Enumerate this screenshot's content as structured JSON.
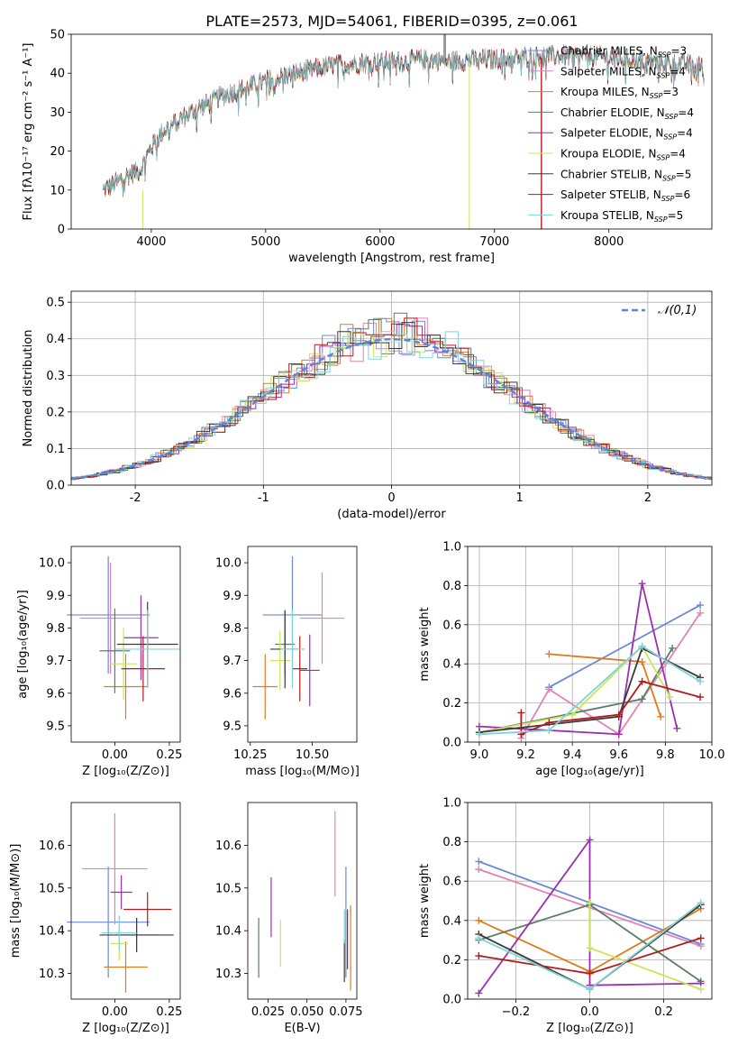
{
  "figure_title": "PLATE=2573, MJD=54061, FIBERID=0395, z=0.061",
  "model_colors": [
    "#6a88d9",
    "#e282b5",
    "#e07b1a",
    "#5e7d66",
    "#9a2fb0",
    "#c9e65a",
    "#3a3a3a",
    "#b31b1b",
    "#7fd3d9"
  ],
  "chart_data": [
    {
      "panel": "spectrum",
      "type": "line",
      "xlabel": "wavelength [Angstrom, rest frame]",
      "ylabel": "Flux [fλ10⁻¹⁷ erg cm⁻² s⁻¹ A⁻¹]",
      "xlim": [
        3300,
        8900
      ],
      "ylim": [
        0,
        50
      ],
      "xticks": [
        4000,
        5000,
        6000,
        7000,
        8000
      ],
      "yticks": [
        0,
        10,
        20,
        30,
        40,
        50
      ],
      "grid": false,
      "legend_position": "right",
      "series": [
        {
          "name": "Chabrier MILES, N",
          "sub": "SSP",
          "suffix": "=3"
        },
        {
          "name": "Salpeter MILES, N",
          "sub": "SSP",
          "suffix": "=4"
        },
        {
          "name": "Kroupa MILES, N",
          "sub": "SSP",
          "suffix": "=3"
        },
        {
          "name": "Chabrier ELODIE, N",
          "sub": "SSP",
          "suffix": "=4"
        },
        {
          "name": "Salpeter ELODIE, N",
          "sub": "SSP",
          "suffix": "=4"
        },
        {
          "name": "Kroupa ELODIE, N",
          "sub": "SSP",
          "suffix": "=4"
        },
        {
          "name": "Chabrier STELIB, N",
          "sub": "SSP",
          "suffix": "=5"
        },
        {
          "name": "Salpeter STELIB, N",
          "sub": "SSP",
          "suffix": "=6"
        },
        {
          "name": "Kroupa STELIB, N",
          "sub": "SSP",
          "suffix": "=5"
        }
      ],
      "continuum": {
        "x": [
          3580,
          3700,
          3800,
          3900,
          4000,
          4100,
          4200,
          4300,
          4400,
          4500,
          4600,
          4800,
          5000,
          5200,
          5400,
          5600,
          5800,
          6000,
          6200,
          6400,
          6600,
          6800,
          7000,
          7200,
          7400,
          7600,
          7800,
          8000,
          8200,
          8400,
          8600,
          8800
        ],
        "y": [
          10,
          12,
          14,
          15,
          21,
          25,
          27,
          29,
          31,
          32,
          34,
          36,
          38,
          39.5,
          41,
          42,
          42.5,
          43,
          43,
          43.5,
          43,
          43.5,
          43.5,
          44,
          44.5,
          44.5,
          44.5,
          44,
          43.5,
          43,
          42.5,
          42
        ]
      }
    },
    {
      "panel": "residuals",
      "type": "area",
      "xlabel": "(data-model)/error",
      "ylabel": "Normed distribution",
      "xlim": [
        -2.5,
        2.5
      ],
      "ylim": [
        0,
        0.53
      ],
      "xticks": [
        -2,
        -1,
        0,
        1,
        2
      ],
      "yticks": [
        0.0,
        0.1,
        0.2,
        0.3,
        0.4,
        0.5
      ],
      "grid": true,
      "legend": "𝒩(0,1)",
      "legend_position": "top-right",
      "gaussian": {
        "mean": 0,
        "sigma": 1
      }
    },
    {
      "panel": "age_vs_Z",
      "type": "scatter",
      "xlabel": "Z [log₁₀(Z/Z⊙)]",
      "ylabel": "age  [log₁₀(age/yr)]",
      "xlim": [
        -0.2,
        0.3
      ],
      "ylim": [
        9.45,
        10.05
      ],
      "xticks": [
        0.0,
        0.25
      ],
      "yticks": [
        9.5,
        9.6,
        9.7,
        9.8,
        9.9,
        10.0
      ],
      "xtick_labels": [
        "0.00",
        "0.25"
      ],
      "ytick_labels": [
        "9.5",
        "9.6",
        "9.7",
        "9.8",
        "9.9",
        "10.0"
      ],
      "points": [
        {
          "x": -0.03,
          "y": 9.84,
          "xerr": 0.19,
          "yerr": 0.18
        },
        {
          "x": -0.02,
          "y": 9.83,
          "xerr": 0.14,
          "yerr": 0.17
        },
        {
          "x": 0.05,
          "y": 9.62,
          "xerr": 0.1,
          "yerr": 0.1
        },
        {
          "x": 0.0,
          "y": 9.73,
          "xerr": 0.07,
          "yerr": 0.13
        },
        {
          "x": 0.12,
          "y": 9.77,
          "xerr": 0.08,
          "yerr": 0.13
        },
        {
          "x": 0.04,
          "y": 9.69,
          "xerr": 0.06,
          "yerr": 0.11
        },
        {
          "x": 0.15,
          "y": 9.75,
          "xerr": 0.14,
          "yerr": 0.13
        },
        {
          "x": 0.13,
          "y": 9.675,
          "xerr": 0.1,
          "yerr": 0.1
        },
        {
          "x": 0.15,
          "y": 9.735,
          "xerr": 0.15,
          "yerr": 0.12
        }
      ]
    },
    {
      "panel": "age_vs_mass",
      "type": "scatter",
      "xlabel": "mass [log₁₀(M/M⊙)]",
      "ylabel": "",
      "xlim": [
        10.24,
        10.68
      ],
      "ylim": [
        9.45,
        10.05
      ],
      "xticks": [
        10.25,
        10.5
      ],
      "yticks": [
        9.5,
        9.6,
        9.7,
        9.8,
        9.9,
        10.0
      ],
      "xtick_labels": [
        "10.25",
        "10.50"
      ],
      "ytick_labels": [
        "9.5",
        "9.6",
        "9.7",
        "9.8",
        "9.9",
        "10.0"
      ],
      "points": [
        {
          "x": 10.42,
          "y": 9.84,
          "xerr": 0.12,
          "yerr": 0.18
        },
        {
          "x": 10.54,
          "y": 9.83,
          "xerr": 0.09,
          "yerr": 0.14
        },
        {
          "x": 10.31,
          "y": 9.62,
          "xerr": 0.05,
          "yerr": 0.1
        },
        {
          "x": 10.39,
          "y": 9.75,
          "xerr": 0.04,
          "yerr": 0.1
        },
        {
          "x": 10.49,
          "y": 9.67,
          "xerr": 0.04,
          "yerr": 0.11
        },
        {
          "x": 10.37,
          "y": 9.7,
          "xerr": 0.04,
          "yerr": 0.09
        },
        {
          "x": 10.39,
          "y": 9.735,
          "xerr": 0.06,
          "yerr": 0.12
        },
        {
          "x": 10.45,
          "y": 9.675,
          "xerr": 0.03,
          "yerr": 0.1
        },
        {
          "x": 10.42,
          "y": 9.735,
          "xerr": 0.05,
          "yerr": 0.12
        }
      ]
    },
    {
      "panel": "mass_weight_vs_age",
      "type": "line",
      "xlabel": "age  [log₁₀(age/yr)]",
      "ylabel": "mass weight",
      "xlim": [
        8.95,
        10.0
      ],
      "ylim": [
        0,
        1
      ],
      "xticks": [
        9.0,
        9.2,
        9.4,
        9.6,
        9.8,
        10.0
      ],
      "yticks": [
        0.0,
        0.2,
        0.4,
        0.6,
        0.8,
        1.0
      ],
      "xtick_labels": [
        "9.0",
        "9.2",
        "9.4",
        "9.6",
        "9.8",
        "10.0"
      ],
      "ytick_labels": [
        "0.0",
        "0.2",
        "0.4",
        "0.6",
        "0.8",
        "1.0"
      ],
      "grid": true,
      "series": [
        {
          "x": [
            9.3,
            9.95
          ],
          "y": [
            0.28,
            0.7
          ]
        },
        {
          "x": [
            9.18,
            9.3,
            9.6,
            9.95
          ],
          "y": [
            0.02,
            0.27,
            0.04,
            0.66
          ]
        },
        {
          "x": [
            9.3,
            9.7,
            9.78
          ],
          "y": [
            0.45,
            0.41,
            0.13
          ]
        },
        {
          "x": [
            9.0,
            9.7,
            9.83
          ],
          "y": [
            0.05,
            0.22,
            0.48
          ]
        },
        {
          "x": [
            9.0,
            9.6,
            9.7,
            9.85
          ],
          "y": [
            0.08,
            0.04,
            0.81,
            0.07
          ]
        },
        {
          "x": [
            9.0,
            9.4,
            9.7,
            9.82
          ],
          "y": [
            0.05,
            0.14,
            0.49,
            0.23
          ]
        },
        {
          "x": [
            9.0,
            9.6,
            9.7,
            9.95
          ],
          "y": [
            0.05,
            0.13,
            0.48,
            0.33
          ]
        },
        {
          "x": [
            9.18,
            9.18,
            9.3,
            9.6,
            9.7,
            9.95
          ],
          "y": [
            0.15,
            0.04,
            0.1,
            0.14,
            0.31,
            0.23
          ]
        },
        {
          "x": [
            9.0,
            9.3,
            9.7,
            9.95
          ],
          "y": [
            0.04,
            0.06,
            0.49,
            0.31
          ]
        }
      ]
    },
    {
      "panel": "mass_vs_Z",
      "type": "scatter",
      "xlabel": "Z [log₁₀(Z/Z⊙)]",
      "ylabel": "mass [log₁₀(M/M⊙)]",
      "xlim": [
        -0.2,
        0.3
      ],
      "ylim": [
        10.24,
        10.7
      ],
      "xticks": [
        0.0,
        0.25
      ],
      "yticks": [
        10.3,
        10.4,
        10.5,
        10.6
      ],
      "xtick_labels": [
        "0.00",
        "0.25"
      ],
      "ytick_labels": [
        "10.3",
        "10.4",
        "10.5",
        "10.6"
      ],
      "points": [
        {
          "x": -0.03,
          "y": 10.42,
          "xerr": 0.19,
          "yerr": 0.13
        },
        {
          "x": 0.0,
          "y": 10.545,
          "xerr": 0.15,
          "yerr": 0.13
        },
        {
          "x": 0.05,
          "y": 10.315,
          "xerr": 0.1,
          "yerr": 0.06
        },
        {
          "x": 0.1,
          "y": 10.39,
          "xerr": 0.1,
          "yerr": 0.04
        },
        {
          "x": 0.03,
          "y": 10.49,
          "xerr": 0.05,
          "yerr": 0.04
        },
        {
          "x": 0.02,
          "y": 10.37,
          "xerr": 0.04,
          "yerr": 0.04
        },
        {
          "x": 0.1,
          "y": 10.39,
          "xerr": 0.17,
          "yerr": 0.04
        },
        {
          "x": 0.15,
          "y": 10.45,
          "xerr": 0.11,
          "yerr": 0.04
        },
        {
          "x": 0.02,
          "y": 10.395,
          "xerr": 0.08,
          "yerr": 0.04
        }
      ]
    },
    {
      "panel": "mass_vs_ebv",
      "type": "scatter",
      "xlabel": "E(B-V)",
      "ylabel": "",
      "xlim": [
        0.012,
        0.082
      ],
      "ylim": [
        10.24,
        10.7
      ],
      "xticks": [
        0.025,
        0.05,
        0.075
      ],
      "yticks": [
        10.3,
        10.4,
        10.5,
        10.6
      ],
      "xtick_labels": [
        "0.025",
        "0.050",
        "0.075"
      ],
      "ytick_labels": [
        "10.3",
        "10.4",
        "10.5",
        "10.6"
      ],
      "points": [
        {
          "x": 0.075,
          "y": 10.42,
          "xerr": 0.0,
          "yerr": 0.13
        },
        {
          "x": 0.068,
          "y": 10.58,
          "xerr": 0.0,
          "yerr": 0.1
        },
        {
          "x": 0.078,
          "y": 10.36,
          "xerr": 0.0,
          "yerr": 0.1
        },
        {
          "x": 0.019,
          "y": 10.36,
          "xerr": 0.0,
          "yerr": 0.07
        },
        {
          "x": 0.027,
          "y": 10.455,
          "xerr": 0.0,
          "yerr": 0.07
        },
        {
          "x": 0.033,
          "y": 10.37,
          "xerr": 0.0,
          "yerr": 0.055
        },
        {
          "x": 0.074,
          "y": 10.33,
          "xerr": 0.0,
          "yerr": 0.05
        },
        {
          "x": 0.076,
          "y": 10.38,
          "xerr": 0.0,
          "yerr": 0.07
        },
        {
          "x": 0.074,
          "y": 10.41,
          "xerr": 0.0,
          "yerr": 0.04
        }
      ]
    },
    {
      "panel": "mass_weight_vs_Z",
      "type": "line",
      "xlabel": "Z [log₁₀(Z/Z⊙)]",
      "ylabel": "mass weight",
      "xlim": [
        -0.33,
        0.33
      ],
      "ylim": [
        0,
        1
      ],
      "xticks": [
        -0.2,
        0.0,
        0.2
      ],
      "yticks": [
        0.0,
        0.2,
        0.4,
        0.6,
        0.8,
        1.0
      ],
      "xtick_labels": [
        "−0.2",
        "0.0",
        "0.2"
      ],
      "ytick_labels": [
        "0.0",
        "0.2",
        "0.4",
        "0.6",
        "0.8",
        "1.0"
      ],
      "grid": true,
      "series": [
        {
          "x": [
            -0.3,
            0.3
          ],
          "y": [
            0.7,
            0.28
          ]
        },
        {
          "x": [
            -0.3,
            0.3
          ],
          "y": [
            0.66,
            0.27
          ]
        },
        {
          "x": [
            -0.3,
            0.0,
            0.3
          ],
          "y": [
            0.4,
            0.14,
            0.46
          ]
        },
        {
          "x": [
            -0.3,
            0.0,
            0.3
          ],
          "y": [
            0.3,
            0.48,
            0.09
          ]
        },
        {
          "x": [
            -0.3,
            0.0,
            0.0,
            0.3
          ],
          "y": [
            0.03,
            0.81,
            0.07,
            0.08
          ]
        },
        {
          "x": [
            0.0,
            0.0,
            0.3
          ],
          "y": [
            0.49,
            0.26,
            0.05
          ]
        },
        {
          "x": [
            -0.3,
            0.0,
            0.3
          ],
          "y": [
            0.33,
            0.05,
            0.48
          ]
        },
        {
          "x": [
            -0.3,
            0.0,
            0.3
          ],
          "y": [
            0.22,
            0.13,
            0.31
          ]
        },
        {
          "x": [
            -0.3,
            0.0,
            0.3
          ],
          "y": [
            0.31,
            0.05,
            0.49
          ]
        }
      ]
    }
  ]
}
